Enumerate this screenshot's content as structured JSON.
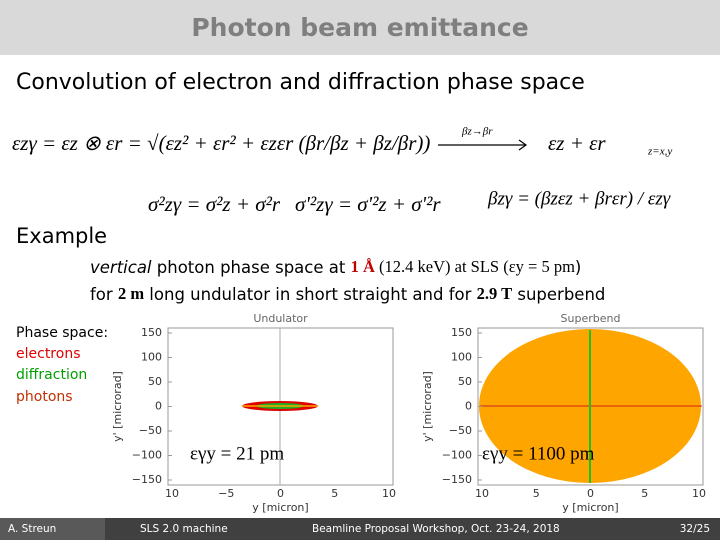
{
  "header": {
    "title": "Photon beam emittance"
  },
  "subtitle": "Convolution of electron and diffraction phase space",
  "equations": {
    "convolution": "εzγ = εz ⊗ εr = √(εz² + εr² + εzεr (βr/βz + βz/βr))",
    "arrow_label": "βz→βr",
    "limit": "εz + εr",
    "plane": "z=x,y",
    "sigma": "σ²zγ = σ²z + σ²r",
    "sigma_prime": "σ'²zγ = σ'²z + σ'²r",
    "beta": "βzγ = (βzεz + βrεr) / εzγ"
  },
  "example": {
    "heading": "Example",
    "line1": [
      "vertical",
      " photon phase space at ",
      "1 Å",
      " (12.4 keV) at SLS (",
      "εy = 5 pm",
      ")"
    ],
    "line2": [
      "for ",
      "2 m",
      " long undulator in short straight and for ",
      "2.9 T",
      " superbend"
    ]
  },
  "legend": {
    "title": "Phase space:",
    "electrons": "electrons",
    "diffraction": "diffraction",
    "photons": "photons"
  },
  "plots": [
    {
      "title": "Undulator",
      "ylabel": "y' [microrad]",
      "xlabel": "y [micron]",
      "annotation": "εγy = 21 pm",
      "yticks": [
        "150",
        "100",
        "50",
        "0",
        "−50",
        "−100",
        "−150"
      ],
      "xticks": [
        "10",
        "−5",
        "0",
        "5",
        "10"
      ]
    },
    {
      "title": "Superbend",
      "ylabel": "y' [microrad]",
      "xlabel": "y [micron]",
      "annotation": "εγy = 1100 pm",
      "yticks": [
        "150",
        "100",
        "50",
        "0",
        "−50",
        "−100",
        "−150"
      ],
      "xticks": [
        "10",
        "5",
        "0",
        "5",
        "10"
      ]
    }
  ],
  "footer": {
    "author": "A. Streun",
    "project": "SLS 2.0 machine",
    "event": "Beamline Proposal Workshop, Oct. 23-24, 2018",
    "page": "32/25"
  }
}
